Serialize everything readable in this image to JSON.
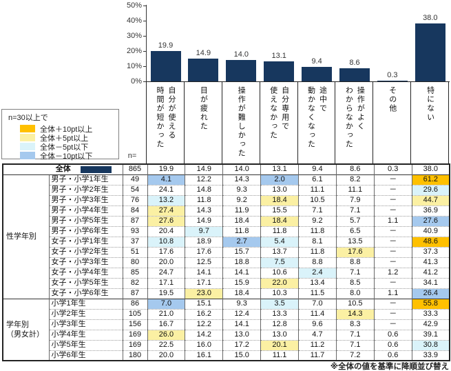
{
  "chart_data": {
    "type": "bar",
    "title": "",
    "xlabel": "",
    "ylabel": "",
    "ylim": [
      0,
      50
    ],
    "yticks": [
      "0%",
      "10%",
      "20%",
      "30%",
      "40%",
      "50%"
    ],
    "grid": false,
    "legend_position": "none",
    "bar_color": "#17375E",
    "categories": [
      "自分が使える\n時間が短かった",
      "目が疲れた",
      "操作が難しかった",
      "自分専用で\n使えなかった",
      "途中で\n動かなくなった",
      "操作がよく\nわからなかった",
      "その他",
      "特にない"
    ],
    "values": [
      19.9,
      14.9,
      14.0,
      13.1,
      9.4,
      8.6,
      0.3,
      38.0
    ],
    "value_labels": [
      "19.9",
      "14.9",
      "14.0",
      "13.1",
      "9.4",
      "8.6",
      "0.3",
      "38.0"
    ]
  },
  "legend": {
    "title": "n=30以上で",
    "items": [
      {
        "key": "orange",
        "label": "全体＋10pt以上",
        "color": "#FFC000"
      },
      {
        "key": "yellow",
        "label": "全体＋5pt以上",
        "color": "#FBF0A3"
      },
      {
        "key": "cyan",
        "label": "全体－5pt以下",
        "color": "#DAF3FA"
      },
      {
        "key": "blue",
        "label": "全体－10pt以下",
        "color": "#A5C9EE"
      }
    ]
  },
  "n_label": "n=",
  "table": {
    "total_row": {
      "label": "全体",
      "n": "865",
      "values": [
        "19.9",
        "14.9",
        "14.0",
        "13.1",
        "9.4",
        "8.6",
        "0.3",
        "38.0"
      ],
      "highlights": [
        "",
        "",
        "",
        "",
        "",
        "",
        "",
        ""
      ]
    },
    "groups": [
      {
        "label": "性学年別",
        "rows": [
          {
            "label": "男子・小学1年生",
            "n": "49",
            "values": [
              "4.1",
              "12.2",
              "14.3",
              "2.0",
              "6.1",
              "8.2",
              "－",
              "61.2"
            ],
            "highlights": [
              "blue",
              "",
              "",
              "blue",
              "",
              "",
              "",
              "orange"
            ]
          },
          {
            "label": "男子・小学2年生",
            "n": "54",
            "values": [
              "24.1",
              "14.8",
              "9.3",
              "13.0",
              "11.1",
              "11.1",
              "－",
              "29.6"
            ],
            "highlights": [
              "",
              "",
              "",
              "",
              "",
              "",
              "",
              "cyan"
            ]
          },
          {
            "label": "男子・小学3年生",
            "n": "76",
            "values": [
              "13.2",
              "11.8",
              "9.2",
              "18.4",
              "10.5",
              "7.9",
              "－",
              "44.7"
            ],
            "highlights": [
              "cyan",
              "",
              "",
              "yellow",
              "",
              "",
              "",
              "yellow"
            ]
          },
          {
            "label": "男子・小学4年生",
            "n": "84",
            "values": [
              "27.4",
              "14.3",
              "11.9",
              "15.5",
              "7.1",
              "7.1",
              "－",
              "36.9"
            ],
            "highlights": [
              "yellow",
              "",
              "",
              "",
              "",
              "",
              "",
              ""
            ]
          },
          {
            "label": "男子・小学5年生",
            "n": "87",
            "values": [
              "27.6",
              "14.9",
              "18.4",
              "18.4",
              "9.2",
              "5.7",
              "1.1",
              "27.6"
            ],
            "highlights": [
              "yellow",
              "",
              "",
              "yellow",
              "",
              "",
              "",
              "blue"
            ]
          },
          {
            "label": "男子・小学6年生",
            "n": "93",
            "values": [
              "20.4",
              "9.7",
              "11.8",
              "11.8",
              "11.8",
              "6.5",
              "－",
              "40.9"
            ],
            "highlights": [
              "",
              "cyan",
              "",
              "",
              "",
              "",
              "",
              ""
            ]
          },
          {
            "label": "女子・小学1年生",
            "n": "37",
            "values": [
              "10.8",
              "18.9",
              "2.7",
              "5.4",
              "8.1",
              "13.5",
              "－",
              "48.6"
            ],
            "highlights": [
              "cyan",
              "",
              "blue",
              "cyan",
              "",
              "",
              "",
              "orange"
            ]
          },
          {
            "label": "女子・小学2年生",
            "n": "51",
            "values": [
              "17.6",
              "17.6",
              "15.7",
              "13.7",
              "11.8",
              "17.6",
              "－",
              "37.3"
            ],
            "highlights": [
              "",
              "",
              "",
              "",
              "",
              "yellow",
              "",
              ""
            ]
          },
          {
            "label": "女子・小学3年生",
            "n": "80",
            "values": [
              "20.0",
              "12.5",
              "18.8",
              "7.5",
              "8.8",
              "8.8",
              "－",
              "41.3"
            ],
            "highlights": [
              "",
              "",
              "",
              "cyan",
              "",
              "",
              "",
              ""
            ]
          },
          {
            "label": "女子・小学4年生",
            "n": "85",
            "values": [
              "24.7",
              "14.1",
              "14.1",
              "10.6",
              "2.4",
              "7.1",
              "1.2",
              "41.2"
            ],
            "highlights": [
              "",
              "",
              "",
              "",
              "cyan",
              "",
              "",
              ""
            ]
          },
          {
            "label": "女子・小学5年生",
            "n": "82",
            "values": [
              "17.1",
              "17.1",
              "15.9",
              "22.0",
              "13.4",
              "8.5",
              "－",
              "34.1"
            ],
            "highlights": [
              "",
              "",
              "",
              "yellow",
              "",
              "",
              "",
              ""
            ]
          },
          {
            "label": "女子・小学6年生",
            "n": "87",
            "values": [
              "19.5",
              "23.0",
              "18.4",
              "10.3",
              "11.5",
              "8.0",
              "1.1",
              "26.4"
            ],
            "highlights": [
              "",
              "yellow",
              "",
              "",
              "",
              "",
              "",
              "blue"
            ]
          }
        ]
      },
      {
        "label": "学年別\n（男女計）",
        "rows": [
          {
            "label": "小学1年生",
            "n": "86",
            "values": [
              "7.0",
              "15.1",
              "9.3",
              "3.5",
              "7.0",
              "10.5",
              "－",
              "55.8"
            ],
            "highlights": [
              "blue",
              "",
              "",
              "cyan",
              "",
              "",
              "",
              "orange"
            ]
          },
          {
            "label": "小学2年生",
            "n": "105",
            "values": [
              "21.0",
              "16.2",
              "12.4",
              "13.3",
              "11.4",
              "14.3",
              "－",
              "33.3"
            ],
            "highlights": [
              "",
              "",
              "",
              "",
              "",
              "yellow",
              "",
              ""
            ]
          },
          {
            "label": "小学3年生",
            "n": "156",
            "values": [
              "16.7",
              "12.2",
              "14.1",
              "12.8",
              "9.6",
              "8.3",
              "－",
              "42.9"
            ],
            "highlights": [
              "",
              "",
              "",
              "",
              "",
              "",
              "",
              ""
            ]
          },
          {
            "label": "小学4年生",
            "n": "169",
            "values": [
              "26.0",
              "14.2",
              "13.0",
              "13.0",
              "4.7",
              "7.1",
              "0.6",
              "39.1"
            ],
            "highlights": [
              "yellow",
              "",
              "",
              "",
              "",
              "",
              "",
              ""
            ]
          },
          {
            "label": "小学5年生",
            "n": "169",
            "values": [
              "22.5",
              "16.0",
              "17.2",
              "20.1",
              "11.2",
              "7.1",
              "0.6",
              "30.8"
            ],
            "highlights": [
              "",
              "",
              "",
              "yellow",
              "",
              "",
              "",
              "cyan"
            ]
          },
          {
            "label": "小学6年生",
            "n": "180",
            "values": [
              "20.0",
              "16.1",
              "15.0",
              "11.1",
              "11.7",
              "7.2",
              "0.6",
              "33.9"
            ],
            "highlights": [
              "",
              "",
              "",
              "",
              "",
              "",
              "",
              ""
            ]
          }
        ]
      }
    ]
  },
  "footer": {
    "note": "※全体の値を基準に降順並び替え"
  }
}
